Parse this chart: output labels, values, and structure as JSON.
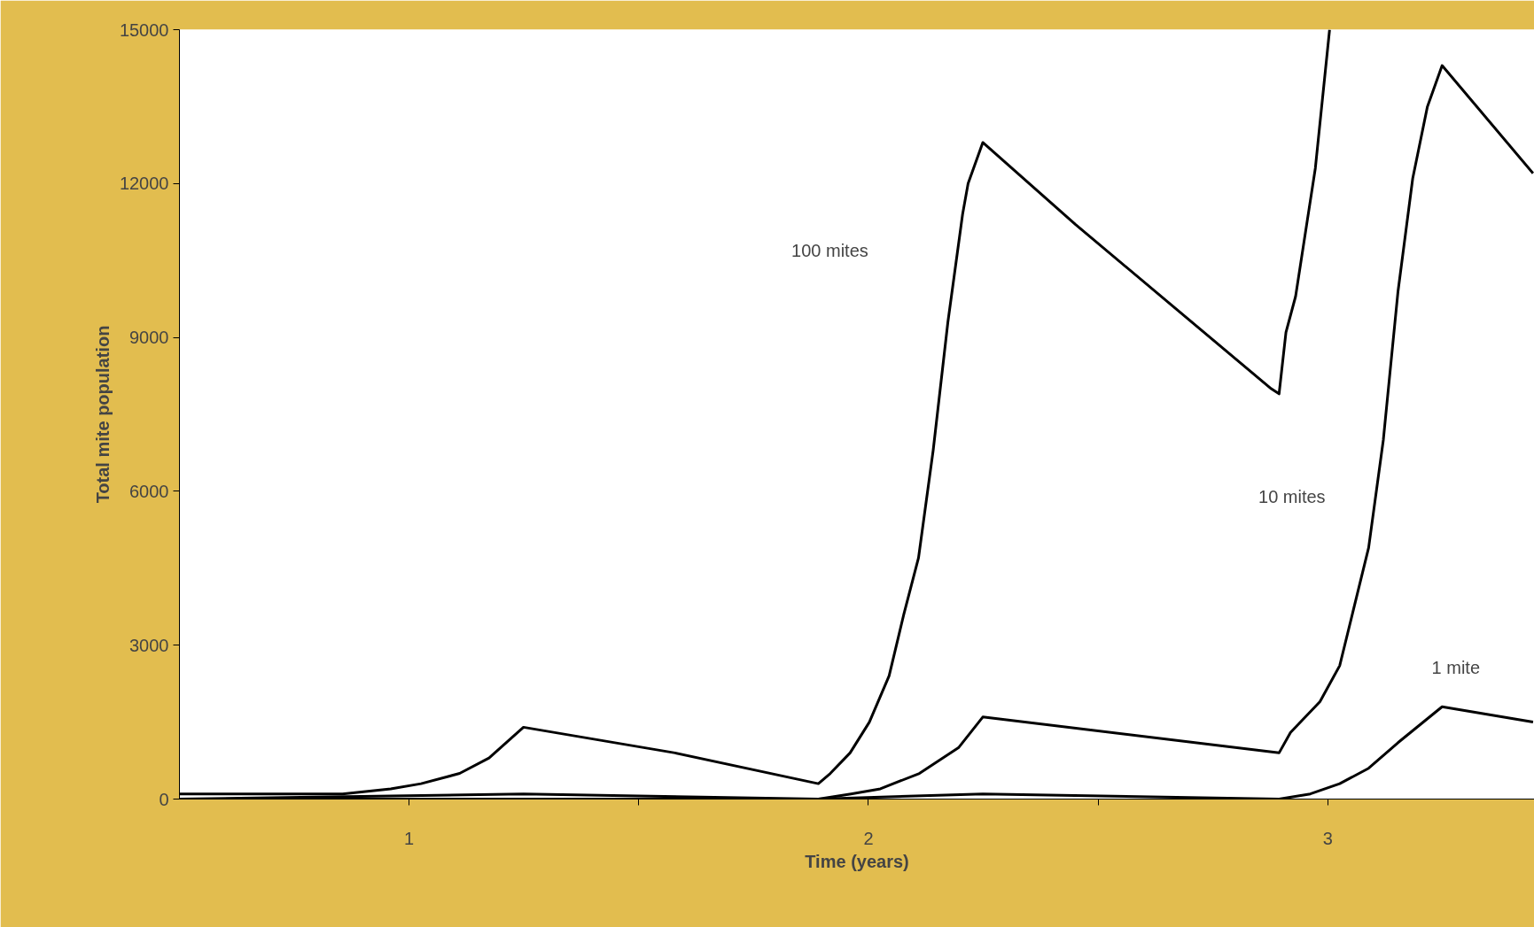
{
  "chart_data": {
    "type": "line",
    "xlabel": "Time (years)",
    "ylabel": "Total mite population",
    "xlim": [
      0.5,
      3.45
    ],
    "ylim": [
      0,
      15000
    ],
    "xticks": [
      1,
      {
        "value": 1.5,
        "label": null
      },
      2,
      {
        "value": 2.5,
        "label": null
      },
      3
    ],
    "yticks": [
      0,
      3000,
      6000,
      9000,
      12000,
      15000
    ],
    "grid": false,
    "marker": "none",
    "line_style": "solid",
    "series": [
      {
        "color": "#000000",
        "x": [
          0.5,
          0.855,
          0.96,
          1.026,
          1.11,
          1.174,
          1.249,
          1.579,
          1.891,
          1.917,
          1.96,
          2.002,
          2.045,
          2.077,
          2.109,
          2.141,
          2.173,
          2.205,
          2.217,
          2.249,
          2.451,
          2.664,
          2.877,
          2.894,
          2.909,
          2.93,
          2.973,
          3.004
        ],
        "values": [
          100,
          100,
          200,
          300,
          500,
          800,
          1400,
          900,
          300,
          500,
          900,
          1500,
          2400,
          3600,
          4700,
          6800,
          9300,
          11400,
          12000,
          12800,
          11200,
          9600,
          8000,
          7900,
          9100,
          9800,
          12300,
          15000
        ]
      },
      {
        "color": "#000000",
        "x": [
          0.5,
          1.249,
          1.891,
          1.962,
          2.026,
          2.111,
          2.196,
          2.249,
          2.894,
          2.919,
          2.983,
          3.026,
          3.089,
          3.121,
          3.153,
          3.185,
          3.217,
          3.249,
          3.447
        ],
        "values": [
          0,
          100,
          0,
          100,
          200,
          500,
          1000,
          1600,
          900,
          1300,
          1900,
          2600,
          4900,
          7000,
          9900,
          12100,
          13500,
          14300,
          12200
        ]
      },
      {
        "color": "#000000",
        "x": [
          0.5,
          1.249,
          1.891,
          2.249,
          2.894,
          2.962,
          3.026,
          3.089,
          3.153,
          3.249,
          3.447
        ],
        "values": [
          0,
          0,
          0,
          100,
          0,
          100,
          300,
          600,
          1100,
          1800,
          1500
        ]
      }
    ],
    "annotations": [
      "100 mites",
      "10 mites",
      "1 mite"
    ]
  }
}
